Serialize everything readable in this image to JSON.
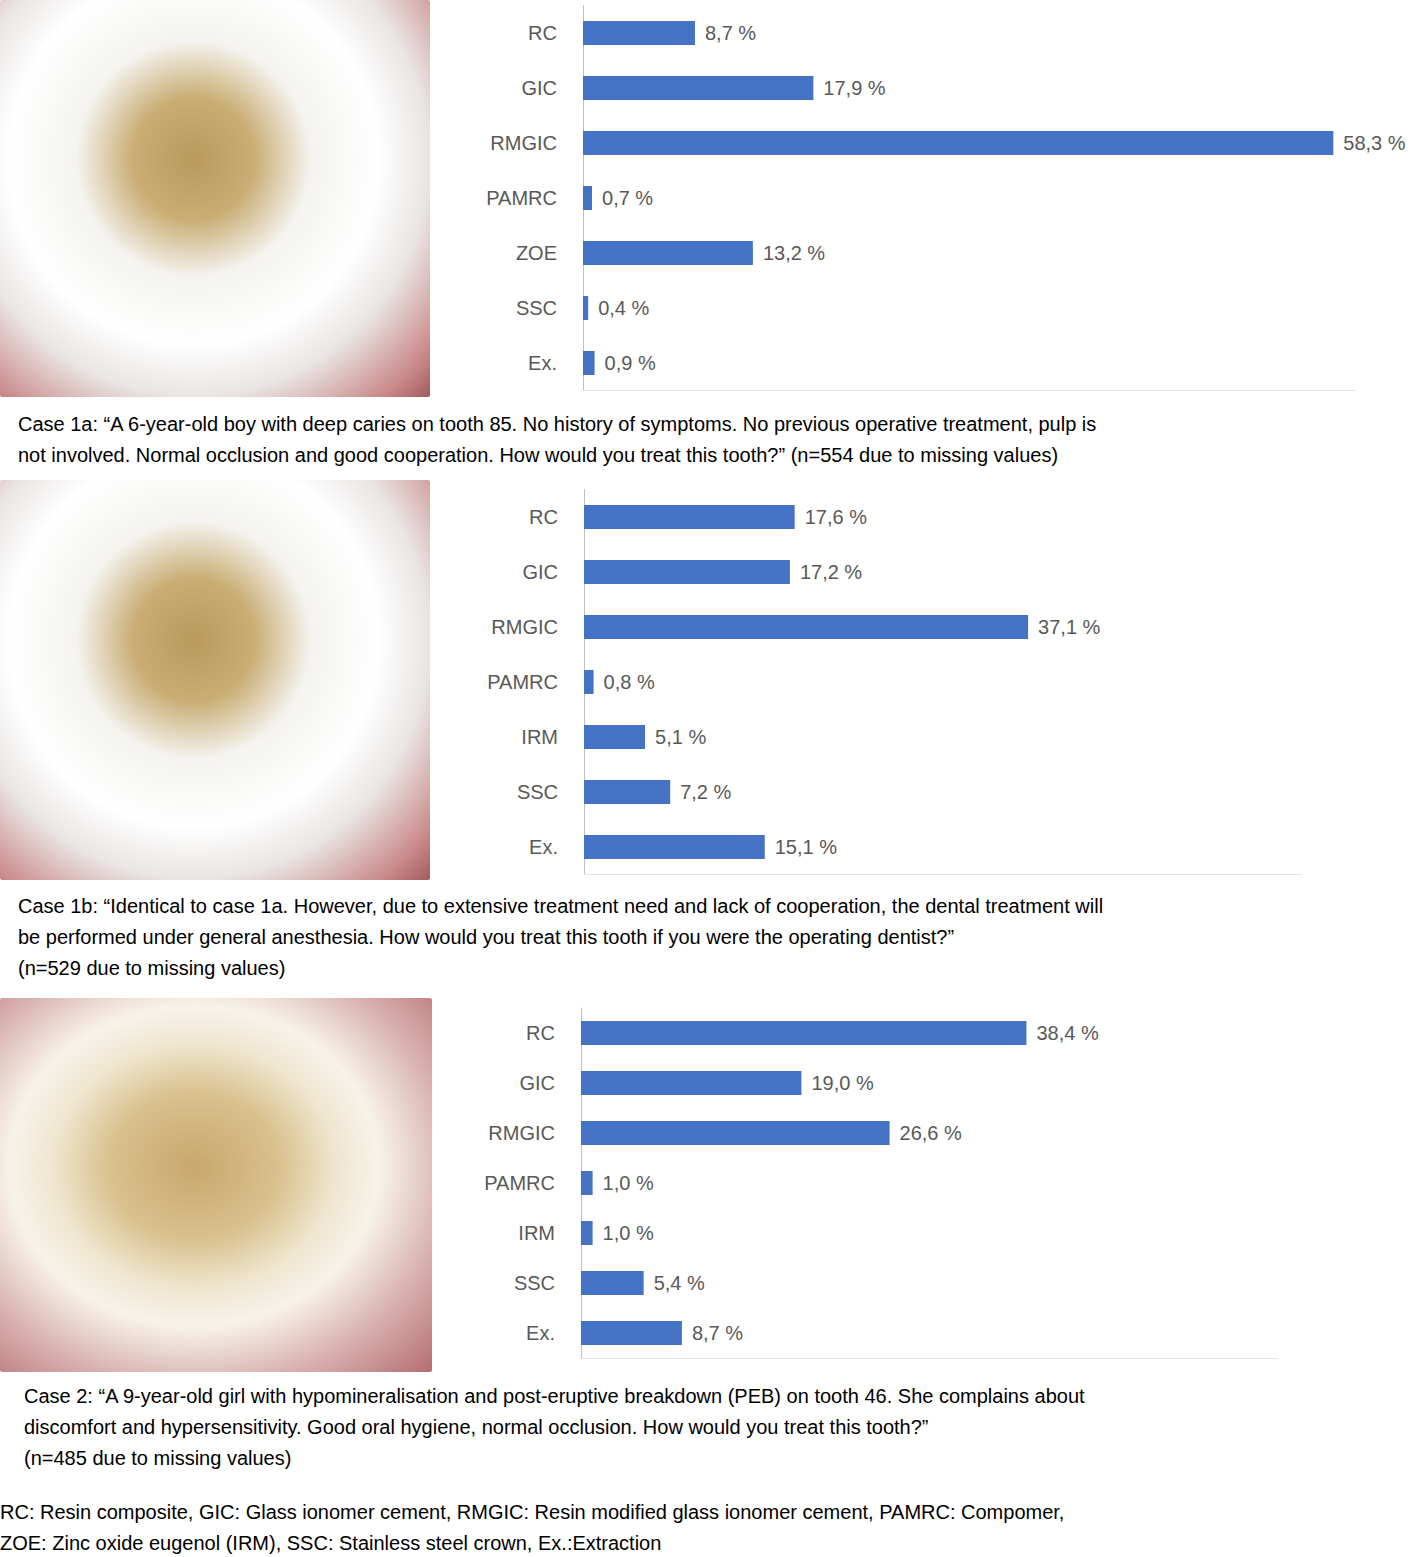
{
  "chart_data": [
    {
      "type": "bar",
      "orientation": "horizontal",
      "categories": [
        "RC",
        "GIC",
        "RMGIC",
        "PAMRC",
        "ZOE",
        "SSC",
        "Ex."
      ],
      "values": [
        8.7,
        17.9,
        58.3,
        0.7,
        13.2,
        0.4,
        0.9
      ],
      "value_labels": [
        "8,7 %",
        "17,9 %",
        "58,3 %",
        "0,7 %",
        "13,2 %",
        "0,4 %",
        "0,9 %"
      ],
      "color": "#4472c4",
      "xlim": [
        0,
        60
      ],
      "data_labels": true,
      "tick_labels": "y",
      "grid": false,
      "caption": [
        "Case 1a: “A 6-year-old boy with deep caries on tooth 85. No history of symptoms. No previous operative treatment, pulp is",
        "not involved. Normal occlusion and good cooperation. How would you treat this tooth?” (n=554 due to missing values)"
      ]
    },
    {
      "type": "bar",
      "orientation": "horizontal",
      "categories": [
        "RC",
        "GIC",
        "RMGIC",
        "PAMRC",
        "IRM",
        "SSC",
        "Ex."
      ],
      "values": [
        17.6,
        17.2,
        37.1,
        0.8,
        5.1,
        7.2,
        15.1
      ],
      "value_labels": [
        "17,6 %",
        "17,2 %",
        "37,1 %",
        "0,8 %",
        "5,1 %",
        "7,2 %",
        "15,1 %"
      ],
      "color": "#4472c4",
      "xlim": [
        0,
        60
      ],
      "data_labels": true,
      "tick_labels": "y",
      "grid": false,
      "caption": [
        "Case 1b: “Identical to case 1a. However, due to extensive treatment need and lack of cooperation, the dental treatment will",
        "be performed under general anesthesia. How would you treat this tooth if you were the operating dentist?”",
        "(n=529 due to missing values)"
      ]
    },
    {
      "type": "bar",
      "orientation": "horizontal",
      "categories": [
        "RC",
        "GIC",
        "RMGIC",
        "PAMRC",
        "IRM",
        "SSC",
        "Ex."
      ],
      "values": [
        38.4,
        19.0,
        26.6,
        1.0,
        1.0,
        5.4,
        8.7
      ],
      "value_labels": [
        "38,4 %",
        "19,0 %",
        "26,6 %",
        "1,0 %",
        "1,0 %",
        "5,4 %",
        "8,7 %"
      ],
      "color": "#4472c4",
      "xlim": [
        0,
        60
      ],
      "data_labels": true,
      "tick_labels": "y",
      "grid": false,
      "caption": [
        "Case 2: “A 9-year-old girl with hypomineralisation and post-eruptive breakdown (PEB) on tooth 46. She complains about",
        "discomfort and hypersensitivity. Good oral hygiene, normal occlusion. How would you treat this tooth?”",
        "(n=485 due to missing values)"
      ]
    }
  ],
  "footnote": [
    "RC: Resin composite, GIC: Glass ionomer cement, RMGIC: Resin modified glass ionomer cement, PAMRC: Compomer,",
    "ZOE: Zinc oxide eugenol (IRM), SSC: Stainless steel crown, Ex.:Extraction"
  ]
}
